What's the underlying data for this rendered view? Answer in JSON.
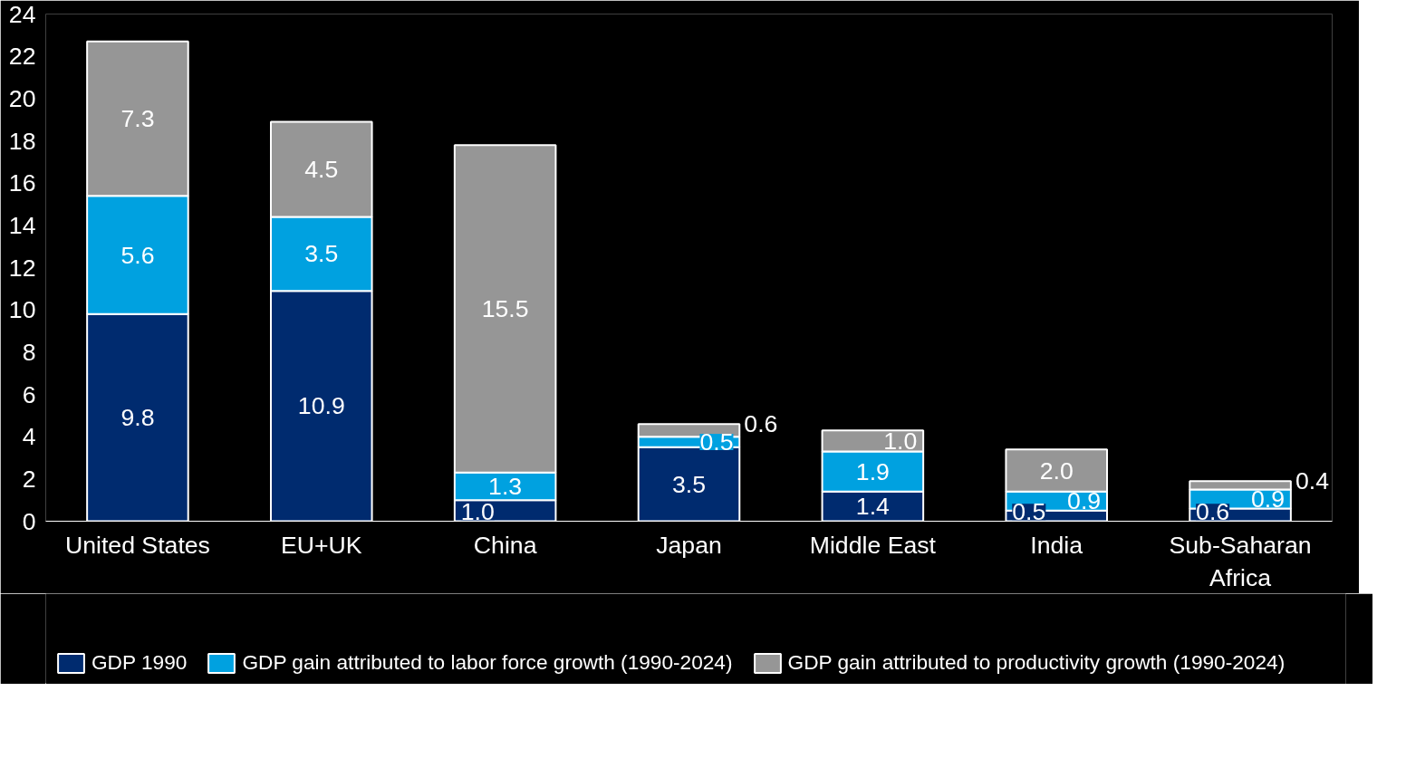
{
  "chart_data": {
    "type": "bar",
    "stacked": true,
    "categories": [
      "United States",
      "EU+UK",
      "China",
      "Japan",
      "Middle East",
      "India",
      "Sub-Saharan Africa"
    ],
    "series": [
      {
        "name": "GDP 1990",
        "color": "#002b6f",
        "values": [
          9.8,
          10.9,
          1.0,
          3.5,
          1.4,
          0.5,
          0.6
        ],
        "value_labels": [
          "9.8",
          "10.9",
          "1.0",
          "3.5",
          "1.4",
          "0.5",
          "0.6"
        ]
      },
      {
        "name": "GDP gain attributed to labor force growth (1990-2024)",
        "color": "#00a1e0",
        "values": [
          5.6,
          3.5,
          1.3,
          0.5,
          1.9,
          0.9,
          0.9
        ],
        "value_labels": [
          "5.6",
          "3.5",
          "1.3",
          "0.5",
          "1.9",
          "0.9",
          "0.9"
        ]
      },
      {
        "name": "GDP gain attributed to productivity growth (1990-2024)",
        "color": "#969696",
        "values": [
          7.3,
          4.5,
          15.5,
          0.6,
          1.0,
          2.0,
          0.4
        ],
        "value_labels": [
          "7.3",
          "4.5",
          "15.5",
          "0.6",
          "1.0",
          "2.0",
          "0.4"
        ]
      }
    ],
    "ylim": [
      0,
      24
    ],
    "yticks": [
      0,
      2,
      4,
      6,
      8,
      10,
      12,
      14,
      16,
      18,
      20,
      22,
      24
    ],
    "grid": false,
    "legend": "bottom left"
  }
}
